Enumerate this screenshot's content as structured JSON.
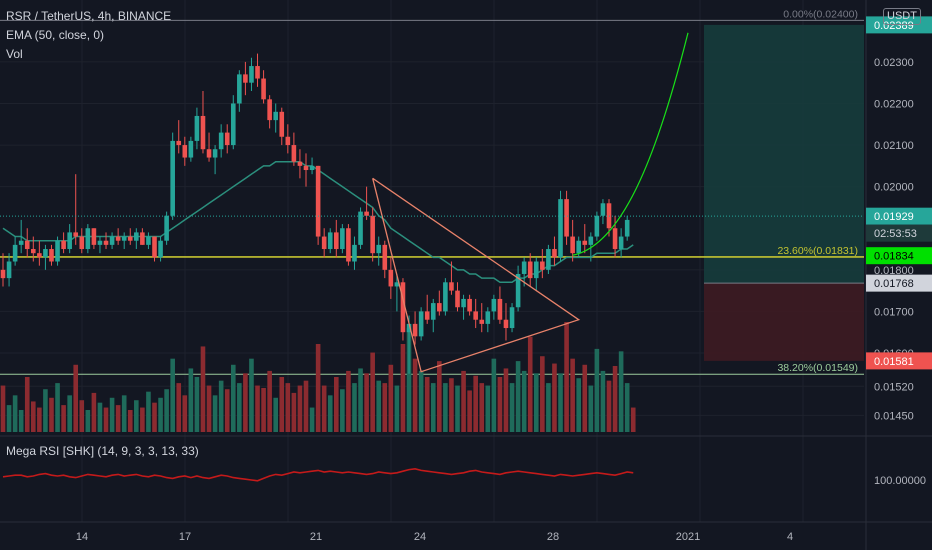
{
  "header": {
    "symbol": "RSR / TetherUS, 4h, BINANCE",
    "ema": "EMA (50, close, 0)",
    "vol": "Vol",
    "rsi": "Mega RSI [SHK] (14, 9, 3, 3, 13, 33)"
  },
  "currency_label": "USDT",
  "colors": {
    "background": "#131722",
    "up": "#26a69a",
    "down": "#ef5350",
    "vol_up": "#1f6b5b",
    "vol_down": "#8c2b30",
    "ema": "#2b8f7d",
    "fib_line": "#c4c431",
    "projection": "#18e018",
    "triangle": "#e8826a",
    "target_zone": "#163c3c",
    "stop_zone": "#3e1b22",
    "rsi_line": "#c41a1a",
    "grid": "#1e222d",
    "text": "#b2b5be"
  },
  "chart_data": {
    "type": "candlestick",
    "title": "RSR / TetherUS, 4h, BINANCE",
    "xlabel": "",
    "ylabel": "",
    "ylim": [
      0.0141,
      0.0242
    ],
    "x_ticks": [
      "14",
      "17",
      "21",
      "24",
      "28",
      "2021",
      "4"
    ],
    "y_ticks": [
      "0.02300",
      "0.02200",
      "0.02100",
      "0.02000",
      "0.01800",
      "0.01700",
      "0.01600",
      "0.01520",
      "0.01450"
    ],
    "price_tags": [
      {
        "label": "0.02389",
        "value": 0.02389,
        "style": "target"
      },
      {
        "label": "0.01929",
        "value": 0.01929,
        "style": "last"
      },
      {
        "label": "02:53:53",
        "value": 0.01887,
        "style": "countdown"
      },
      {
        "label": "0.01834",
        "value": 0.01834,
        "style": "fib"
      },
      {
        "label": "0.01768",
        "value": 0.01768,
        "style": "entry"
      },
      {
        "label": "0.01581",
        "value": 0.01581,
        "style": "stop"
      }
    ],
    "fib_levels": [
      {
        "label": "0.00%(0.02400)",
        "value": 0.024
      },
      {
        "label": "23.60%(0.01831)",
        "value": 0.01831
      },
      {
        "label": "38.20%(0.01549)",
        "value": 0.01549
      }
    ],
    "position_tool": {
      "entry": 0.01768,
      "target": 0.02389,
      "stop": 0.01581
    },
    "rsi_label": "100.00000",
    "series": [
      {
        "name": "RSR / TetherUS",
        "ohlc": [
          [
            0.018,
            0.0184,
            0.0176,
            0.0178
          ],
          [
            0.0178,
            0.0184,
            0.0176,
            0.0182
          ],
          [
            0.0182,
            0.0188,
            0.0181,
            0.0186
          ],
          [
            0.0186,
            0.0192,
            0.0184,
            0.0187
          ],
          [
            0.0187,
            0.019,
            0.0183,
            0.0185
          ],
          [
            0.0185,
            0.0188,
            0.0182,
            0.0184
          ],
          [
            0.0184,
            0.0187,
            0.0181,
            0.0183
          ],
          [
            0.0183,
            0.0186,
            0.018,
            0.0185
          ],
          [
            0.0185,
            0.0186,
            0.0181,
            0.0182
          ],
          [
            0.0182,
            0.0188,
            0.0181,
            0.0187
          ],
          [
            0.0187,
            0.0189,
            0.0184,
            0.0185
          ],
          [
            0.0185,
            0.0191,
            0.0184,
            0.0189
          ],
          [
            0.0189,
            0.0203,
            0.0186,
            0.0188
          ],
          [
            0.0188,
            0.019,
            0.0184,
            0.0185
          ],
          [
            0.0185,
            0.0191,
            0.0184,
            0.019
          ],
          [
            0.019,
            0.019,
            0.0185,
            0.0186
          ],
          [
            0.0186,
            0.0188,
            0.0184,
            0.0187
          ],
          [
            0.0187,
            0.0189,
            0.0185,
            0.0186
          ],
          [
            0.0186,
            0.0189,
            0.0185,
            0.0188
          ],
          [
            0.0188,
            0.019,
            0.0186,
            0.0187
          ],
          [
            0.0187,
            0.0189,
            0.0185,
            0.0188
          ],
          [
            0.0188,
            0.019,
            0.0186,
            0.0187
          ],
          [
            0.0187,
            0.019,
            0.0185,
            0.0189
          ],
          [
            0.0189,
            0.019,
            0.0186,
            0.0186
          ],
          [
            0.0186,
            0.0189,
            0.0185,
            0.0188
          ],
          [
            0.0188,
            0.0188,
            0.0182,
            0.0183
          ],
          [
            0.0183,
            0.0188,
            0.0182,
            0.0187
          ],
          [
            0.0187,
            0.0194,
            0.0186,
            0.0193
          ],
          [
            0.0193,
            0.0213,
            0.0192,
            0.0211
          ],
          [
            0.0211,
            0.0216,
            0.0208,
            0.021
          ],
          [
            0.021,
            0.0212,
            0.0205,
            0.0207
          ],
          [
            0.0207,
            0.0212,
            0.0206,
            0.0211
          ],
          [
            0.0211,
            0.0219,
            0.0209,
            0.0217
          ],
          [
            0.0217,
            0.0223,
            0.0208,
            0.0209
          ],
          [
            0.0209,
            0.0213,
            0.0206,
            0.0207
          ],
          [
            0.0207,
            0.021,
            0.0203,
            0.0209
          ],
          [
            0.0209,
            0.0215,
            0.0207,
            0.0213
          ],
          [
            0.0213,
            0.0215,
            0.0208,
            0.021
          ],
          [
            0.021,
            0.0222,
            0.0209,
            0.022
          ],
          [
            0.022,
            0.0228,
            0.0218,
            0.0227
          ],
          [
            0.0227,
            0.023,
            0.0222,
            0.0225
          ],
          [
            0.0225,
            0.0231,
            0.0223,
            0.0229
          ],
          [
            0.0229,
            0.0232,
            0.0224,
            0.0226
          ],
          [
            0.0226,
            0.0228,
            0.022,
            0.0221
          ],
          [
            0.0221,
            0.0222,
            0.0214,
            0.0216
          ],
          [
            0.0216,
            0.022,
            0.0213,
            0.0218
          ],
          [
            0.0218,
            0.0219,
            0.021,
            0.0212
          ],
          [
            0.0212,
            0.0215,
            0.0208,
            0.021
          ],
          [
            0.021,
            0.0213,
            0.0205,
            0.0206
          ],
          [
            0.0206,
            0.0209,
            0.0202,
            0.0205
          ],
          [
            0.0205,
            0.0208,
            0.02,
            0.0204
          ],
          [
            0.0204,
            0.0207,
            0.0203,
            0.0205
          ],
          [
            0.0205,
            0.0205,
            0.0186,
            0.0188
          ],
          [
            0.0188,
            0.019,
            0.0183,
            0.0185
          ],
          [
            0.0185,
            0.019,
            0.0184,
            0.0189
          ],
          [
            0.0189,
            0.0192,
            0.0183,
            0.0185
          ],
          [
            0.0185,
            0.0191,
            0.0184,
            0.019
          ],
          [
            0.019,
            0.0191,
            0.0181,
            0.0182
          ],
          [
            0.0182,
            0.0188,
            0.018,
            0.0186
          ],
          [
            0.0186,
            0.0195,
            0.0185,
            0.0194
          ],
          [
            0.0194,
            0.02,
            0.0192,
            0.0193
          ],
          [
            0.0193,
            0.0195,
            0.0182,
            0.0184
          ],
          [
            0.0184,
            0.0188,
            0.0181,
            0.0186
          ],
          [
            0.0186,
            0.0187,
            0.0178,
            0.018
          ],
          [
            0.018,
            0.0183,
            0.0173,
            0.0176
          ],
          [
            0.0176,
            0.0179,
            0.017,
            0.0177
          ],
          [
            0.0177,
            0.0178,
            0.0163,
            0.0165
          ],
          [
            0.0165,
            0.0169,
            0.0155,
            0.0167
          ],
          [
            0.0167,
            0.017,
            0.0162,
            0.0164
          ],
          [
            0.0164,
            0.0171,
            0.0163,
            0.017
          ],
          [
            0.017,
            0.0174,
            0.0167,
            0.0168
          ],
          [
            0.0168,
            0.0173,
            0.0165,
            0.0172
          ],
          [
            0.0172,
            0.0175,
            0.0169,
            0.017
          ],
          [
            0.017,
            0.0178,
            0.0169,
            0.0177
          ],
          [
            0.0177,
            0.0182,
            0.0174,
            0.0175
          ],
          [
            0.0175,
            0.0177,
            0.017,
            0.0171
          ],
          [
            0.0171,
            0.0174,
            0.0168,
            0.0173
          ],
          [
            0.0173,
            0.0174,
            0.0169,
            0.017
          ],
          [
            0.017,
            0.0173,
            0.0166,
            0.0168
          ],
          [
            0.0168,
            0.0172,
            0.0165,
            0.0167
          ],
          [
            0.0167,
            0.0171,
            0.0165,
            0.017
          ],
          [
            0.017,
            0.0174,
            0.0168,
            0.0173
          ],
          [
            0.0173,
            0.0176,
            0.0167,
            0.0168
          ],
          [
            0.0168,
            0.0172,
            0.0163,
            0.0166
          ],
          [
            0.0166,
            0.0172,
            0.0165,
            0.0171
          ],
          [
            0.0171,
            0.0181,
            0.017,
            0.0179
          ],
          [
            0.0179,
            0.0183,
            0.0176,
            0.0182
          ],
          [
            0.0182,
            0.0184,
            0.0176,
            0.0178
          ],
          [
            0.0178,
            0.0183,
            0.0175,
            0.0182
          ],
          [
            0.0182,
            0.0185,
            0.0178,
            0.018
          ],
          [
            0.018,
            0.0186,
            0.0179,
            0.0185
          ],
          [
            0.0185,
            0.0188,
            0.0181,
            0.0183
          ],
          [
            0.0183,
            0.0199,
            0.0182,
            0.0197
          ],
          [
            0.0197,
            0.0199,
            0.0186,
            0.0188
          ],
          [
            0.0188,
            0.0192,
            0.0182,
            0.0184
          ],
          [
            0.0184,
            0.0188,
            0.0183,
            0.0187
          ],
          [
            0.0187,
            0.0191,
            0.0184,
            0.0186
          ],
          [
            0.0186,
            0.0189,
            0.0182,
            0.0188
          ],
          [
            0.0188,
            0.0194,
            0.0187,
            0.0193
          ],
          [
            0.0193,
            0.0197,
            0.0191,
            0.0196
          ],
          [
            0.0196,
            0.0197,
            0.0188,
            0.019
          ],
          [
            0.019,
            0.0193,
            0.0183,
            0.0185
          ],
          [
            0.0185,
            0.019,
            0.0183,
            0.0188
          ],
          [
            0.0188,
            0.0193,
            0.0187,
            0.0192
          ]
        ]
      },
      {
        "name": "EMA (50, close, 0)",
        "values": [
          0.019,
          0.0189,
          0.0188,
          0.0188,
          0.0187,
          0.0187,
          0.0187,
          0.0187,
          0.0187,
          0.0187,
          0.0187,
          0.0187,
          0.0188,
          0.0188,
          0.0188,
          0.0188,
          0.0188,
          0.0188,
          0.0188,
          0.0188,
          0.0188,
          0.0188,
          0.0188,
          0.0188,
          0.0188,
          0.0188,
          0.0188,
          0.0189,
          0.019,
          0.0191,
          0.0192,
          0.0193,
          0.0194,
          0.0195,
          0.0196,
          0.0197,
          0.0198,
          0.0199,
          0.02,
          0.0201,
          0.0202,
          0.0203,
          0.0204,
          0.0205,
          0.0205,
          0.0206,
          0.0206,
          0.0206,
          0.0206,
          0.0206,
          0.0205,
          0.0205,
          0.0204,
          0.0203,
          0.0202,
          0.0201,
          0.02,
          0.0199,
          0.0198,
          0.0197,
          0.0196,
          0.0195,
          0.0193,
          0.0192,
          0.019,
          0.0189,
          0.0188,
          0.0187,
          0.0186,
          0.0185,
          0.0184,
          0.0183,
          0.0183,
          0.0182,
          0.0181,
          0.018,
          0.018,
          0.0179,
          0.0179,
          0.0178,
          0.0178,
          0.0178,
          0.0177,
          0.0177,
          0.0177,
          0.0178,
          0.0178,
          0.0179,
          0.0179,
          0.018,
          0.0181,
          0.0181,
          0.0182,
          0.0183,
          0.0183,
          0.0183,
          0.0183,
          0.0183,
          0.0184,
          0.0184,
          0.0184,
          0.0184,
          0.0185,
          0.0185,
          0.0186
        ]
      },
      {
        "name": "Vol",
        "values": [
          38,
          22,
          30,
          18,
          45,
          25,
          20,
          35,
          28,
          40,
          22,
          30,
          55,
          26,
          18,
          32,
          24,
          20,
          28,
          22,
          30,
          18,
          26,
          20,
          33,
          24,
          28,
          35,
          60,
          40,
          30,
          52,
          45,
          70,
          38,
          30,
          42,
          35,
          55,
          40,
          48,
          60,
          38,
          36,
          50,
          28,
          45,
          40,
          32,
          38,
          42,
          20,
          72,
          38,
          30,
          45,
          35,
          50,
          40,
          52,
          48,
          65,
          42,
          40,
          55,
          38,
          72,
          85,
          60,
          50,
          45,
          40,
          58,
          40,
          44,
          38,
          50,
          34,
          46,
          40,
          38,
          60,
          45,
          52,
          40,
          58,
          50,
          78,
          48,
          62,
          40,
          56,
          48,
          90,
          60,
          44,
          55,
          38,
          68,
          50,
          42,
          54,
          66,
          40,
          20
        ],
        "direction": [
          "d",
          "u",
          "u",
          "u",
          "d",
          "d",
          "d",
          "u",
          "d",
          "u",
          "d",
          "u",
          "d",
          "d",
          "u",
          "d",
          "u",
          "d",
          "u",
          "d",
          "u",
          "d",
          "u",
          "d",
          "u",
          "d",
          "u",
          "u",
          "u",
          "d",
          "d",
          "u",
          "u",
          "d",
          "d",
          "u",
          "u",
          "d",
          "u",
          "u",
          "d",
          "u",
          "d",
          "d",
          "d",
          "u",
          "d",
          "d",
          "d",
          "d",
          "d",
          "u",
          "d",
          "d",
          "u",
          "d",
          "u",
          "d",
          "u",
          "u",
          "d",
          "d",
          "u",
          "d",
          "d",
          "u",
          "d",
          "u",
          "d",
          "u",
          "d",
          "u",
          "d",
          "u",
          "d",
          "u",
          "d",
          "d",
          "d",
          "d",
          "u",
          "u",
          "d",
          "d",
          "u",
          "u",
          "u",
          "d",
          "u",
          "d",
          "u",
          "d",
          "u",
          "d",
          "d",
          "u",
          "d",
          "u",
          "u",
          "u",
          "d",
          "d",
          "u",
          "u",
          "d"
        ]
      },
      {
        "name": "Mega RSI [SHK] (14, 9, 3, 3, 13, 33)",
        "values": [
          54,
          55,
          56,
          56,
          54,
          55,
          57,
          58,
          56,
          55,
          56,
          54,
          53,
          55,
          57,
          56,
          55,
          54,
          56,
          57,
          55,
          56,
          57,
          55,
          54,
          56,
          55,
          53,
          52,
          54,
          55,
          53,
          55,
          53,
          52,
          54,
          56,
          55,
          53,
          52,
          51,
          50,
          49,
          52,
          55,
          57,
          56,
          58,
          60,
          59,
          60,
          61,
          62,
          60,
          61,
          60,
          59,
          60,
          59,
          58,
          57,
          58,
          60,
          59,
          58,
          59,
          61,
          63,
          64,
          62,
          61,
          60,
          59,
          58,
          57,
          58,
          59,
          61,
          62,
          60,
          59,
          58,
          57,
          59,
          60,
          61,
          60,
          59,
          58,
          57,
          56,
          55,
          57,
          56,
          55,
          56,
          57,
          58,
          59,
          58,
          57,
          56,
          58,
          60,
          59
        ]
      }
    ]
  }
}
